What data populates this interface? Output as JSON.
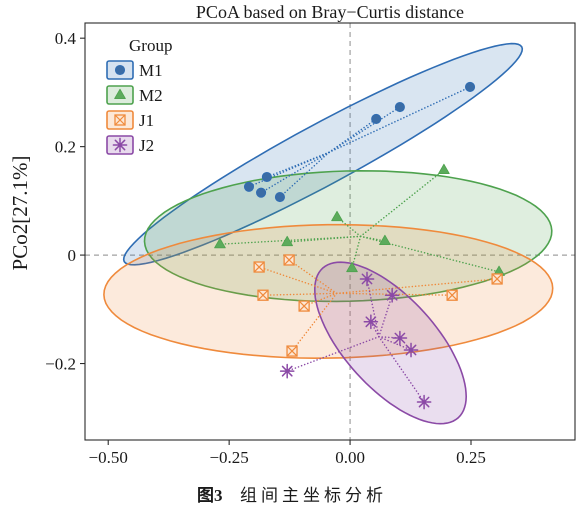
{
  "chart_data": {
    "type": "scatter",
    "title": "PCoA based on Bray−Curtis distance",
    "ylabel": "PCo2[27.1%]",
    "xlim": [
      -0.548,
      0.465
    ],
    "ylim": [
      -0.341,
      0.428
    ],
    "xticks": [
      -0.5,
      -0.25,
      0,
      0.25
    ],
    "xtick_labels": [
      "−0.50",
      "−0.25",
      "0.00",
      "0.25"
    ],
    "yticks": [
      0.4,
      0.2,
      0,
      -0.2
    ],
    "ytick_labels": [
      "0.4",
      "0.2",
      "0",
      "−0.2"
    ],
    "reference_lines": {
      "x": 0,
      "y": 0
    },
    "grid": false,
    "legend": {
      "title": "Group",
      "position": "top-left"
    },
    "series": [
      {
        "name": "M1",
        "marker": "circle",
        "color": "#2f6db4",
        "marker_fill": "#3a6ca6",
        "x": [
          0.248,
          0.103,
          0.054,
          -0.172,
          -0.209,
          -0.184,
          -0.145
        ],
        "y": [
          0.31,
          0.273,
          0.251,
          0.144,
          0.126,
          0.115,
          0.107
        ],
        "confidence_ellipse": {
          "center": [
            -0.056,
            0.186
          ],
          "semi_axis_1": [
            0.411,
            0.198
          ],
          "semi_axis_2": [
            0.03,
            -0.049
          ]
        }
      },
      {
        "name": "M2",
        "marker": "triangle",
        "color": "#4ea24e",
        "marker_fill": "#5cab5c",
        "x": [
          0.194,
          -0.027,
          -0.269,
          -0.13,
          0.072,
          0.004,
          0.308
        ],
        "y": [
          0.157,
          0.07,
          0.02,
          0.024,
          0.026,
          -0.024,
          -0.031
        ],
        "confidence_ellipse": {
          "center": [
            -0.004,
            0.035
          ],
          "semi_axis_1": [
            0.421,
            0.01
          ],
          "semi_axis_2": [
            0.004,
            -0.12
          ]
        }
      },
      {
        "name": "J1",
        "marker": "square-x",
        "color": "#ef8a3c",
        "marker_fill": "#fde6d3",
        "x": [
          -0.188,
          -0.126,
          -0.18,
          -0.095,
          -0.12,
          0.211,
          0.304
        ],
        "y": [
          -0.022,
          -0.009,
          -0.074,
          -0.094,
          -0.177,
          -0.074,
          -0.044
        ],
        "confidence_ellipse": {
          "center": [
            -0.045,
            -0.067
          ],
          "semi_axis_1": [
            0.464,
            0.006
          ],
          "semi_axis_2": [
            0.002,
            -0.123
          ]
        }
      },
      {
        "name": "J2",
        "marker": "asterisk",
        "color": "#8b4aa6",
        "marker_fill": "#8b4aa6",
        "x": [
          0.035,
          0.087,
          0.043,
          0.103,
          0.126,
          0.153,
          -0.13
        ],
        "y": [
          -0.044,
          -0.074,
          -0.123,
          -0.153,
          -0.175,
          -0.271,
          -0.214
        ],
        "confidence_ellipse": {
          "center": [
            0.0835,
            -0.162
          ],
          "semi_axis_1": [
            0.14,
            -0.138
          ],
          "semi_axis_2": [
            -0.07,
            -0.056
          ]
        }
      }
    ]
  },
  "caption": {
    "label": "图3",
    "text": "组间主坐标分析"
  }
}
